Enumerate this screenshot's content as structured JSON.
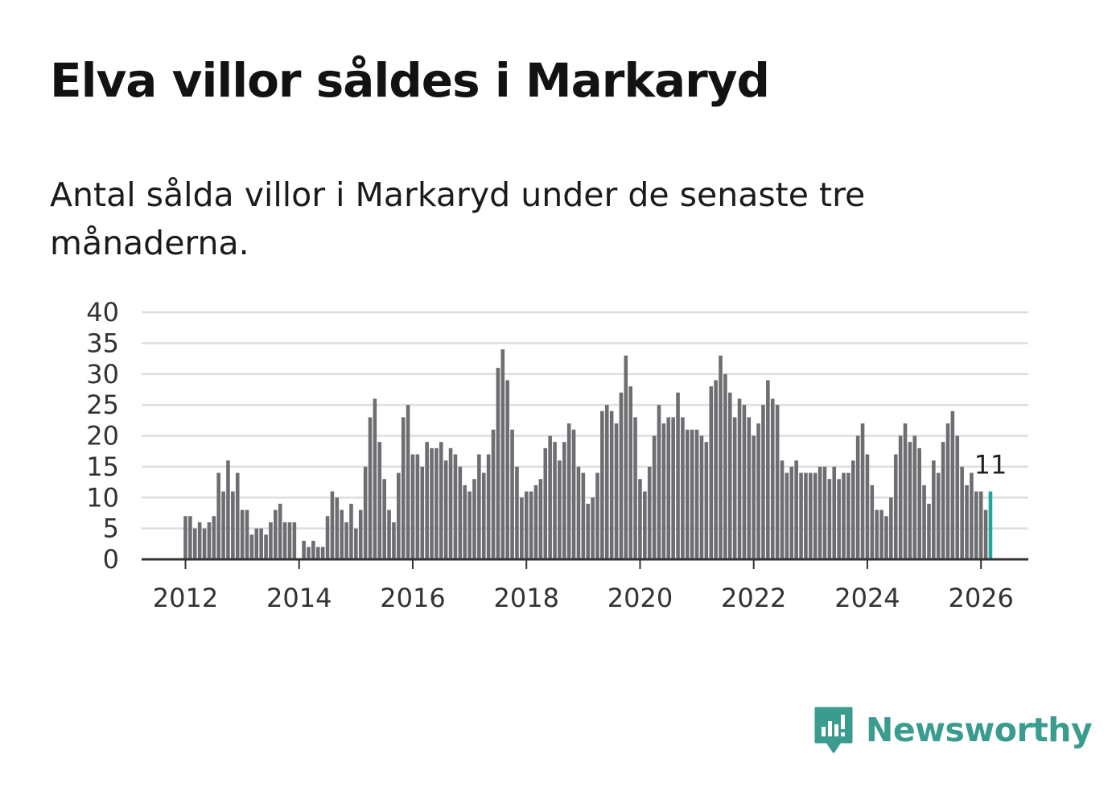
{
  "title": "Elva villor såldes i Markaryd",
  "subtitle": "Antal sålda villor i Markaryd under de senaste tre månaderna.",
  "brand": "Newsworthy",
  "colors": {
    "bar": "#6e6d72",
    "highlight": "#22a59b",
    "grid": "#dedede",
    "axis": "#333333",
    "brand": "#3a9b8f"
  },
  "chart_data": {
    "type": "bar",
    "title": "Antal sålda villor i Markaryd under de senaste tre månaderna.",
    "xlabel": "",
    "ylabel": "",
    "ylim": [
      0,
      40
    ],
    "yticks": [
      0,
      5,
      10,
      15,
      20,
      25,
      30,
      35,
      40
    ],
    "xticks": [
      "2012",
      "2014",
      "2016",
      "2018",
      "2020",
      "2022",
      "2024",
      "2026"
    ],
    "start": "2012-01",
    "frequency": "monthly",
    "grid": true,
    "values": [
      7,
      7,
      5,
      6,
      5,
      6,
      7,
      14,
      11,
      16,
      11,
      14,
      8,
      8,
      4,
      5,
      5,
      4,
      6,
      8,
      9,
      6,
      6,
      6,
      0,
      3,
      2,
      3,
      2,
      2,
      7,
      11,
      10,
      8,
      6,
      9,
      5,
      8,
      15,
      23,
      26,
      19,
      13,
      8,
      6,
      14,
      23,
      25,
      17,
      17,
      15,
      19,
      18,
      18,
      19,
      16,
      18,
      17,
      15,
      12,
      11,
      13,
      17,
      14,
      17,
      21,
      31,
      34,
      29,
      21,
      15,
      10,
      11,
      11,
      12,
      13,
      18,
      20,
      19,
      16,
      19,
      22,
      21,
      15,
      14,
      9,
      10,
      14,
      24,
      25,
      24,
      22,
      27,
      33,
      28,
      23,
      13,
      11,
      15,
      20,
      25,
      22,
      23,
      23,
      27,
      23,
      21,
      21,
      21,
      20,
      19,
      28,
      29,
      33,
      30,
      27,
      23,
      26,
      25,
      23,
      20,
      22,
      25,
      29,
      26,
      25,
      16,
      14,
      15,
      16,
      14,
      14,
      14,
      14,
      15,
      15,
      13,
      15,
      13,
      14,
      14,
      16,
      20,
      22,
      17,
      12,
      8,
      8,
      7,
      10,
      17,
      20,
      22,
      19,
      20,
      18,
      12,
      9,
      16,
      14,
      19,
      22,
      24,
      20,
      15,
      12,
      14,
      11,
      11,
      8,
      11
    ],
    "last_value_label": "11"
  }
}
